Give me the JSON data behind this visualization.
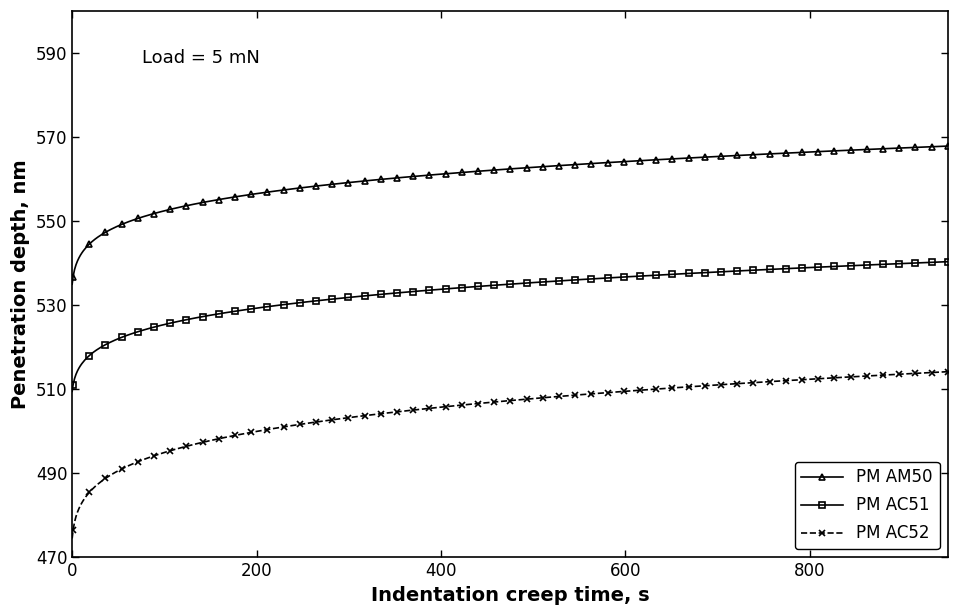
{
  "title": "",
  "xlabel": "Indentation creep time, s",
  "ylabel": "Penetration depth, nm",
  "annotation": "Load = 5 mN",
  "xlim": [
    0,
    950
  ],
  "ylim": [
    470,
    600
  ],
  "yticks": [
    470,
    490,
    510,
    530,
    550,
    570,
    590
  ],
  "xticks": [
    0,
    200,
    400,
    600,
    800
  ],
  "series": [
    {
      "label": "PM AM50",
      "marker": "^",
      "linestyle": "-",
      "color": "#000000",
      "a": 535.0,
      "b": 13.5,
      "c": 0.18,
      "t0": 1.0
    },
    {
      "label": "PM AC51",
      "marker": "s",
      "linestyle": "-",
      "color": "#000000",
      "a": 509.5,
      "b": 10.5,
      "c": 0.2,
      "t0": 1.0
    },
    {
      "label": "PM AC52",
      "marker": "x",
      "linestyle": "--",
      "color": "#000000",
      "a": 474.5,
      "b": 13.5,
      "c": 0.2,
      "t0": 1.0
    }
  ],
  "legend_loc": "lower right",
  "background_color": "#ffffff",
  "markersize": 5,
  "linewidth": 1.2,
  "n_markers": 55
}
